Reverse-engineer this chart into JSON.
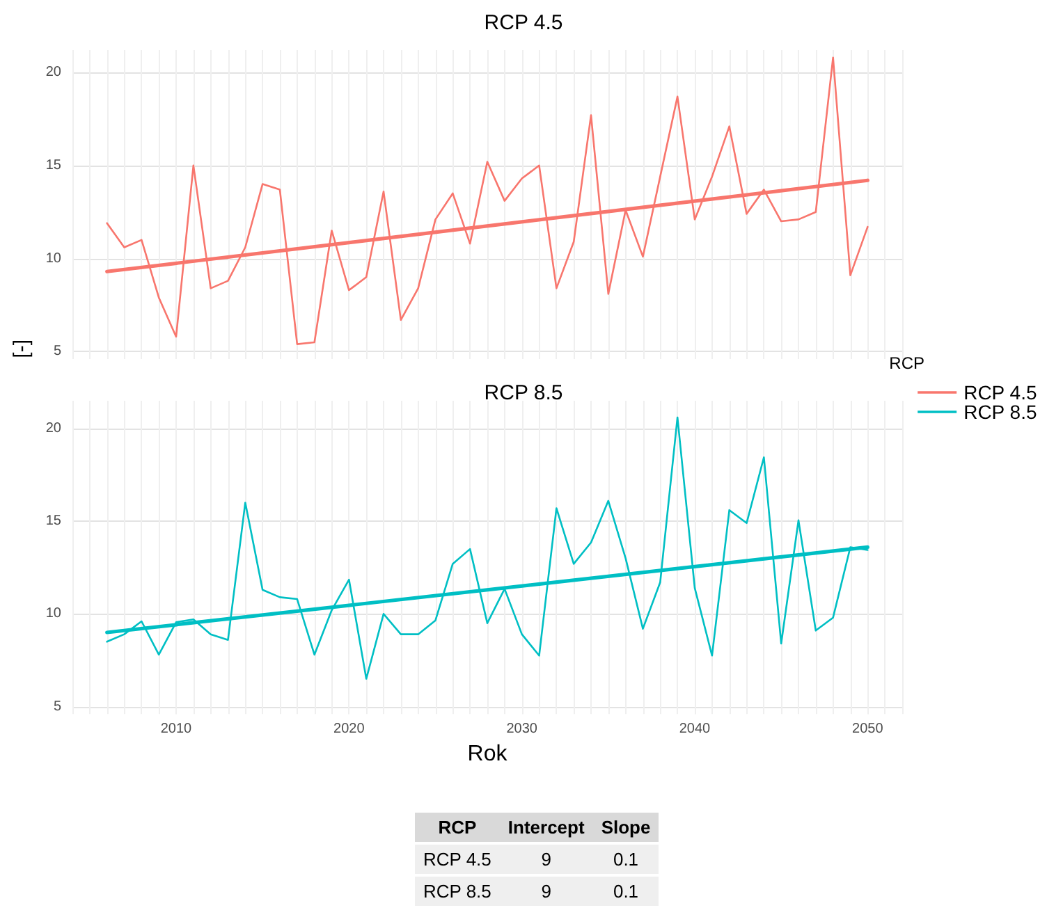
{
  "chart_data": [
    {
      "type": "line",
      "title": "RCP 4.5",
      "ylabel": "[-]",
      "legend_title": "RCP",
      "legend": "right",
      "grid": true,
      "marker": "none",
      "tick_labels": "y",
      "xlim": [
        2004,
        2052
      ],
      "xticks": [
        2010,
        2020,
        2030,
        2040,
        2050
      ],
      "ylim": [
        4.6,
        21.2
      ],
      "yticks": [
        5,
        10,
        15,
        20
      ],
      "series": [
        {
          "name": "RCP 4.5",
          "color": "#f8766d",
          "x": [
            2006,
            2007,
            2008,
            2009,
            2010,
            2011,
            2012,
            2013,
            2014,
            2015,
            2016,
            2017,
            2018,
            2019,
            2020,
            2021,
            2022,
            2023,
            2024,
            2025,
            2026,
            2027,
            2028,
            2029,
            2030,
            2031,
            2032,
            2033,
            2034,
            2035,
            2036,
            2037,
            2038,
            2039,
            2040,
            2041,
            2042,
            2043,
            2044,
            2045,
            2046,
            2047,
            2048,
            2049,
            2050
          ],
          "values": [
            11.9,
            10.6,
            11.0,
            7.9,
            5.8,
            15.0,
            8.4,
            8.8,
            10.6,
            14.0,
            13.7,
            5.4,
            5.5,
            11.5,
            8.3,
            9.0,
            13.6,
            6.7,
            8.4,
            12.1,
            13.5,
            10.8,
            15.2,
            13.1,
            14.3,
            15.0,
            8.4,
            10.9,
            17.7,
            8.1,
            12.6,
            10.1,
            14.4,
            18.7,
            12.1,
            14.4,
            17.1,
            12.4,
            13.7,
            12.0,
            12.1,
            12.5,
            20.8,
            9.1,
            11.7
          ]
        },
        {
          "type": "line",
          "color": "#f8766d",
          "x": [
            2006,
            2050
          ],
          "values": [
            9.3,
            14.2
          ]
        }
      ]
    },
    {
      "type": "line",
      "title": "RCP 8.5",
      "xlabel": "Rok",
      "legend": "right",
      "grid": true,
      "marker": "none",
      "xlim": [
        2004,
        2052
      ],
      "xticks": [
        2010,
        2020,
        2030,
        2040,
        2050
      ],
      "ylim": [
        4.6,
        21.5
      ],
      "yticks": [
        5,
        10,
        15,
        20
      ],
      "series": [
        {
          "name": "RCP 8.5",
          "color": "#00bfc4",
          "x": [
            2006,
            2007,
            2008,
            2009,
            2010,
            2011,
            2012,
            2013,
            2014,
            2015,
            2016,
            2017,
            2018,
            2019,
            2020,
            2021,
            2022,
            2023,
            2024,
            2025,
            2026,
            2027,
            2028,
            2029,
            2030,
            2031,
            2032,
            2033,
            2034,
            2035,
            2036,
            2037,
            2038,
            2039,
            2040,
            2041,
            2042,
            2043,
            2044,
            2045,
            2046,
            2047,
            2048,
            2049,
            2050
          ],
          "values": [
            8.5,
            8.9,
            9.6,
            7.8,
            9.55,
            9.7,
            8.9,
            8.6,
            16.0,
            11.3,
            10.9,
            10.8,
            7.8,
            10.2,
            11.85,
            6.5,
            10.0,
            8.9,
            8.9,
            9.65,
            12.7,
            13.5,
            9.5,
            11.35,
            8.9,
            7.75,
            15.7,
            12.7,
            13.85,
            16.1,
            13.0,
            9.2,
            11.7,
            20.6,
            11.4,
            7.75,
            15.6,
            14.9,
            18.45,
            8.4,
            15.05,
            9.1,
            9.8,
            13.6,
            13.45
          ]
        },
        {
          "type": "line",
          "color": "#00bfc4",
          "x": [
            2006,
            2050
          ],
          "values": [
            9.0,
            13.6
          ]
        }
      ]
    },
    {
      "type": "other",
      "annotations": [
        "RCP",
        "Intercept",
        "Slope",
        "RCP 4.5",
        "9",
        "0.1",
        "RCP 8.5",
        "9",
        "0.1"
      ]
    }
  ]
}
